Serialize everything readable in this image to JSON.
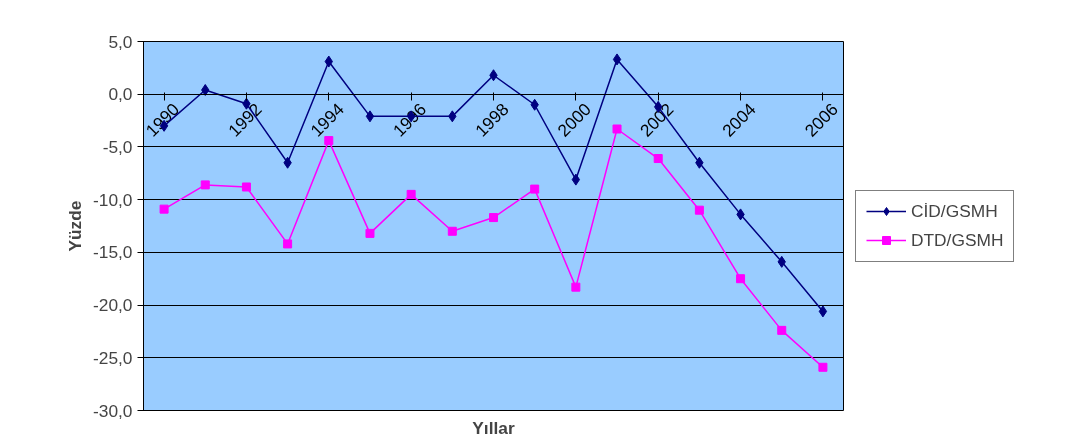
{
  "chart_data": {
    "type": "line",
    "xlabel": "Yıllar",
    "ylabel": "Yüzde",
    "categories": [
      "1990",
      null,
      "1992",
      null,
      "1994",
      null,
      "1996",
      null,
      "1998",
      null,
      "2000",
      null,
      "2002",
      null,
      "2004",
      null,
      "2006"
    ],
    "series": [
      {
        "name": "CİD/GSMH",
        "color": "#000080",
        "marker": "diamond",
        "values": [
          -3.0,
          0.4,
          -0.9,
          -6.5,
          3.1,
          -2.1,
          -2.1,
          -2.1,
          1.8,
          -1.0,
          -8.1,
          3.3,
          -1.2,
          -6.5,
          -11.4,
          -15.9,
          -20.6
        ]
      },
      {
        "name": "DTD/GSMH",
        "color": "#ff00ff",
        "marker": "square",
        "values": [
          -10.9,
          -8.6,
          -8.8,
          -14.2,
          -4.4,
          -13.2,
          -9.5,
          -13.0,
          -11.7,
          -9.0,
          -18.3,
          -3.3,
          -6.1,
          -11.0,
          -17.5,
          -22.4,
          -25.9
        ]
      }
    ],
    "ylim": [
      -30,
      5
    ],
    "yticks": [
      {
        "value": 5,
        "label": "5,0"
      },
      {
        "value": 0,
        "label": "0,0"
      },
      {
        "value": -5,
        "label": "-5,0"
      },
      {
        "value": -10,
        "label": "-10,0"
      },
      {
        "value": -15,
        "label": "-15,0"
      },
      {
        "value": -20,
        "label": "-20,0"
      },
      {
        "value": -25,
        "label": "-25,0"
      },
      {
        "value": -30,
        "label": "-30,0"
      }
    ],
    "grid": "y",
    "legend": "right"
  }
}
